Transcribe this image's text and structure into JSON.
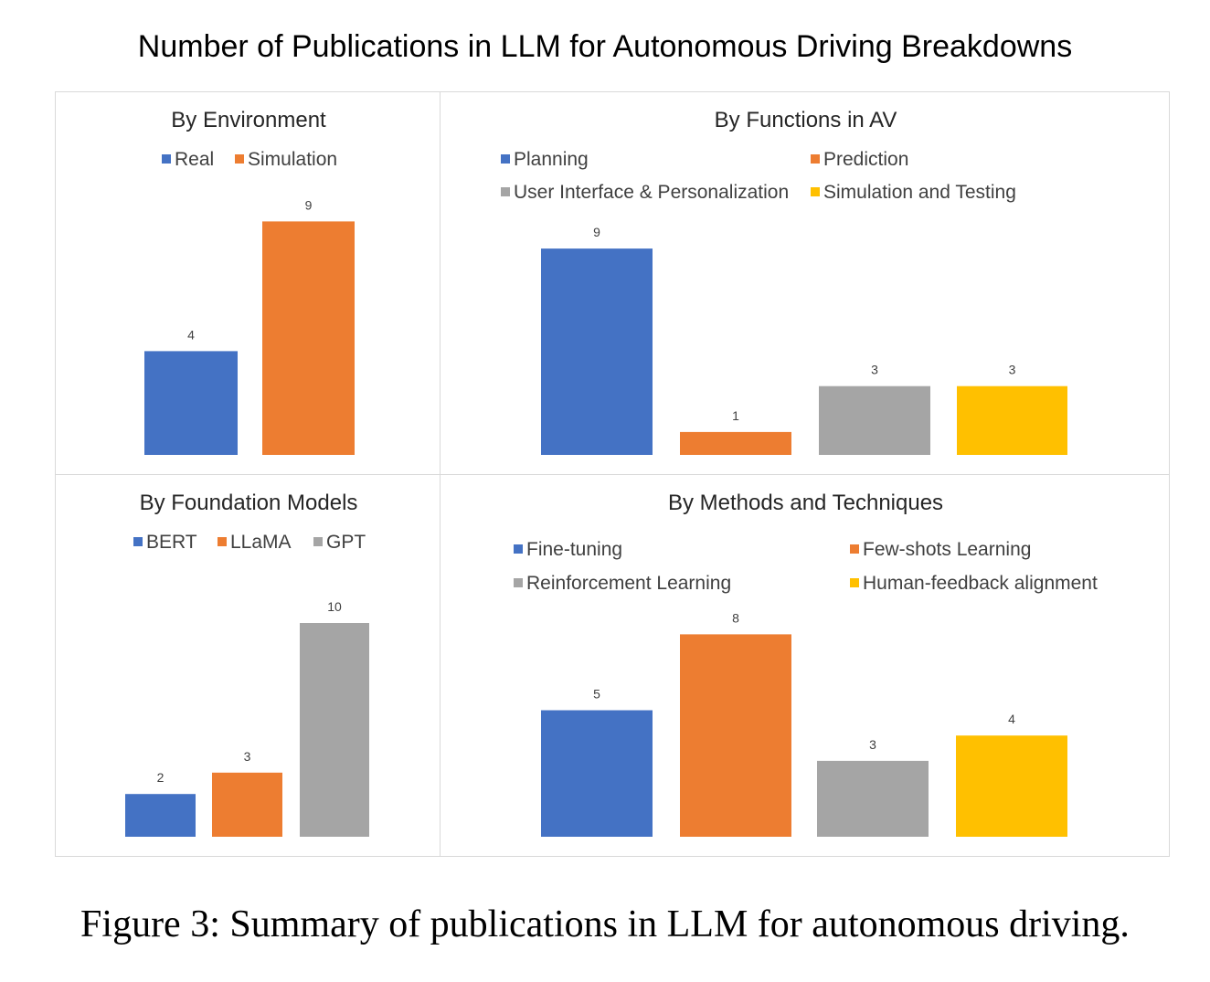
{
  "figure": {
    "title": "Number of Publications in LLM for Autonomous Driving Breakdowns",
    "caption": "Figure 3: Summary of publications in LLM for autonomous driving."
  },
  "chart_data": [
    {
      "type": "bar",
      "title": "By Environment",
      "legend_position": "top",
      "categories": [
        "Real",
        "Simulation"
      ],
      "values": [
        4,
        9
      ],
      "colors": [
        "#4472C4",
        "#ED7D31"
      ],
      "data_labels": [
        "4",
        "9"
      ]
    },
    {
      "type": "bar",
      "title": "By Functions in AV",
      "legend_position": "top",
      "categories": [
        "Planning",
        "Prediction",
        "User Interface & Personalization",
        "Simulation and Testing"
      ],
      "values": [
        9,
        1,
        3,
        3
      ],
      "colors": [
        "#4472C4",
        "#ED7D31",
        "#A5A5A5",
        "#FFC000"
      ],
      "data_labels": [
        "9",
        "1",
        "3",
        "3"
      ]
    },
    {
      "type": "bar",
      "title": "By Foundation Models",
      "legend_position": "top",
      "categories": [
        "BERT",
        "LLaMA",
        "GPT"
      ],
      "values": [
        2,
        3,
        10
      ],
      "colors": [
        "#4472C4",
        "#ED7D31",
        "#A5A5A5"
      ],
      "data_labels": [
        "2",
        "3",
        "10"
      ]
    },
    {
      "type": "bar",
      "title": "By Methods and Techniques",
      "legend_position": "top",
      "categories": [
        "Fine-tuning",
        "Few-shots Learning",
        "Reinforcement Learning",
        "Human-feedback alignment"
      ],
      "values": [
        5,
        8,
        3,
        4
      ],
      "colors": [
        "#4472C4",
        "#ED7D31",
        "#A5A5A5",
        "#FFC000"
      ],
      "data_labels": [
        "5",
        "8",
        "3",
        "4"
      ]
    }
  ]
}
